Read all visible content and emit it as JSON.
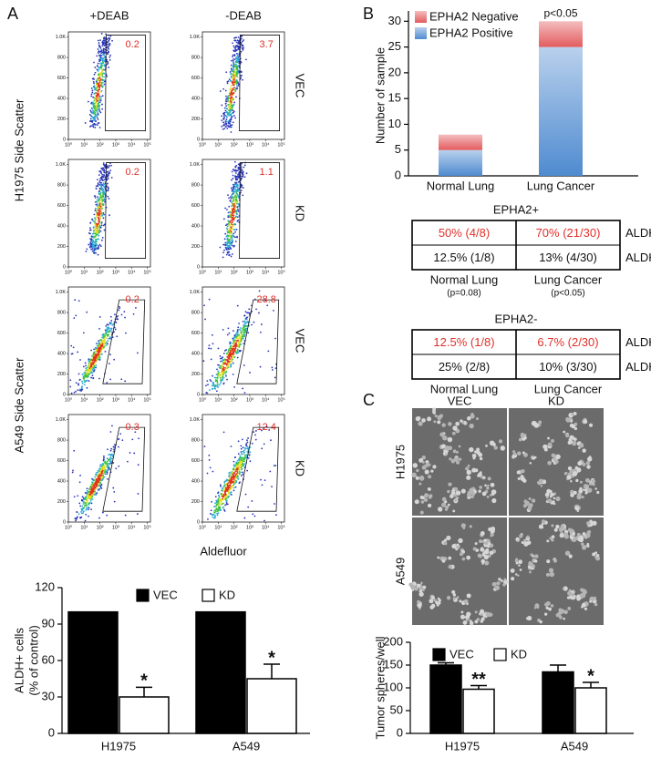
{
  "panel_labels": [
    "A",
    "B",
    "C"
  ],
  "flow": {
    "columns": [
      "+DEAB",
      "-DEAB"
    ],
    "rows": [
      "VEC",
      "KD",
      "VEC",
      "KD"
    ],
    "row_groups": [
      "H1975  Side Scatter",
      "A549 Side Scatter"
    ],
    "xlabel": "Aldefluor",
    "gates": [
      [
        0.2,
        3.7
      ],
      [
        0.2,
        1.1
      ],
      [
        0.2,
        28.8
      ],
      [
        0.3,
        12.4
      ]
    ],
    "ylim": [
      0,
      1050
    ],
    "yticks": [
      0,
      200,
      400,
      600,
      800,
      {
        "value": 1000,
        "label": "1.0K"
      }
    ],
    "xlim": [
      0,
      5.2
    ],
    "xticks": [
      {
        "value": 0,
        "label": "10⁰"
      },
      {
        "value": 1,
        "label": "10¹"
      },
      {
        "value": 2,
        "label": "10²"
      },
      {
        "value": 3,
        "label": "10³"
      },
      {
        "value": 4,
        "label": "10⁴"
      },
      {
        "value": 5,
        "label": "10⁵"
      }
    ]
  },
  "chart_data": [
    {
      "type": "bar",
      "ylabel": [
        "ALDH+ cells",
        "(% of control)"
      ],
      "categories": [
        "H1975",
        "A549"
      ],
      "series": [
        {
          "name": "VEC",
          "color": "#000000",
          "values": [
            100,
            100
          ]
        },
        {
          "name": "KD",
          "color": "#ffffff",
          "values": [
            30,
            45
          ],
          "errors": [
            8,
            12
          ],
          "significance": [
            "*",
            "*"
          ]
        }
      ],
      "ylim": [
        0,
        120
      ],
      "yticks": [
        0,
        30,
        60,
        90,
        120
      ]
    },
    {
      "type": "stacked_bar",
      "ylabel": "Number of sample",
      "categories": [
        "Normal Lung",
        "Lung Cancer"
      ],
      "series": [
        {
          "name": "EPHA2 Positive",
          "color": "#4f8bd0",
          "values": [
            5,
            25
          ]
        },
        {
          "name": "EPHA2 Negative",
          "color": "#e35b5e",
          "values": [
            3,
            5
          ]
        }
      ],
      "annotations": [
        {
          "text": "p<0.05",
          "category": 1
        }
      ],
      "ylim": [
        0,
        32
      ],
      "yticks": [
        0,
        5,
        10,
        15,
        20,
        25,
        30
      ]
    },
    {
      "type": "bar",
      "ylabel": "Tumor spheres/well",
      "categories": [
        "H1975",
        "A549"
      ],
      "series": [
        {
          "name": "VEC",
          "color": "#000000",
          "values": [
            150,
            135
          ],
          "errors": [
            5,
            15
          ]
        },
        {
          "name": "KD",
          "color": "#ffffff",
          "values": [
            97,
            100
          ],
          "errors": [
            8,
            12
          ],
          "significance": [
            "**",
            "*"
          ]
        }
      ],
      "ylim": [
        0,
        200
      ],
      "yticks": [
        0,
        50,
        100,
        150,
        200
      ]
    }
  ],
  "tables": [
    {
      "title": "EPHA2+",
      "rows": [
        [
          "50% (4/8)",
          "70% (21/30)"
        ],
        [
          "12.5% (1/8)",
          "13% (4/30)"
        ]
      ],
      "row_labels": [
        "ALDH+",
        "ALDH-"
      ],
      "column_labels": [
        "Normal Lung",
        "Lung Cancer"
      ],
      "notes": [
        "(p=0.08)",
        "(p<0.05)"
      ]
    },
    {
      "title": "EPHA2-",
      "rows": [
        [
          "12.5% (1/8)",
          "6.7% (2/30)"
        ],
        [
          "25% (2/8)",
          "10% (3/30)"
        ]
      ],
      "row_labels": [
        "ALDH+",
        "ALDH-"
      ],
      "column_labels": [
        "Normal Lung",
        "Lung Cancer"
      ]
    }
  ],
  "images": {
    "columns": [
      "VEC",
      "KD"
    ],
    "rows": [
      "H1975",
      "A549"
    ]
  }
}
